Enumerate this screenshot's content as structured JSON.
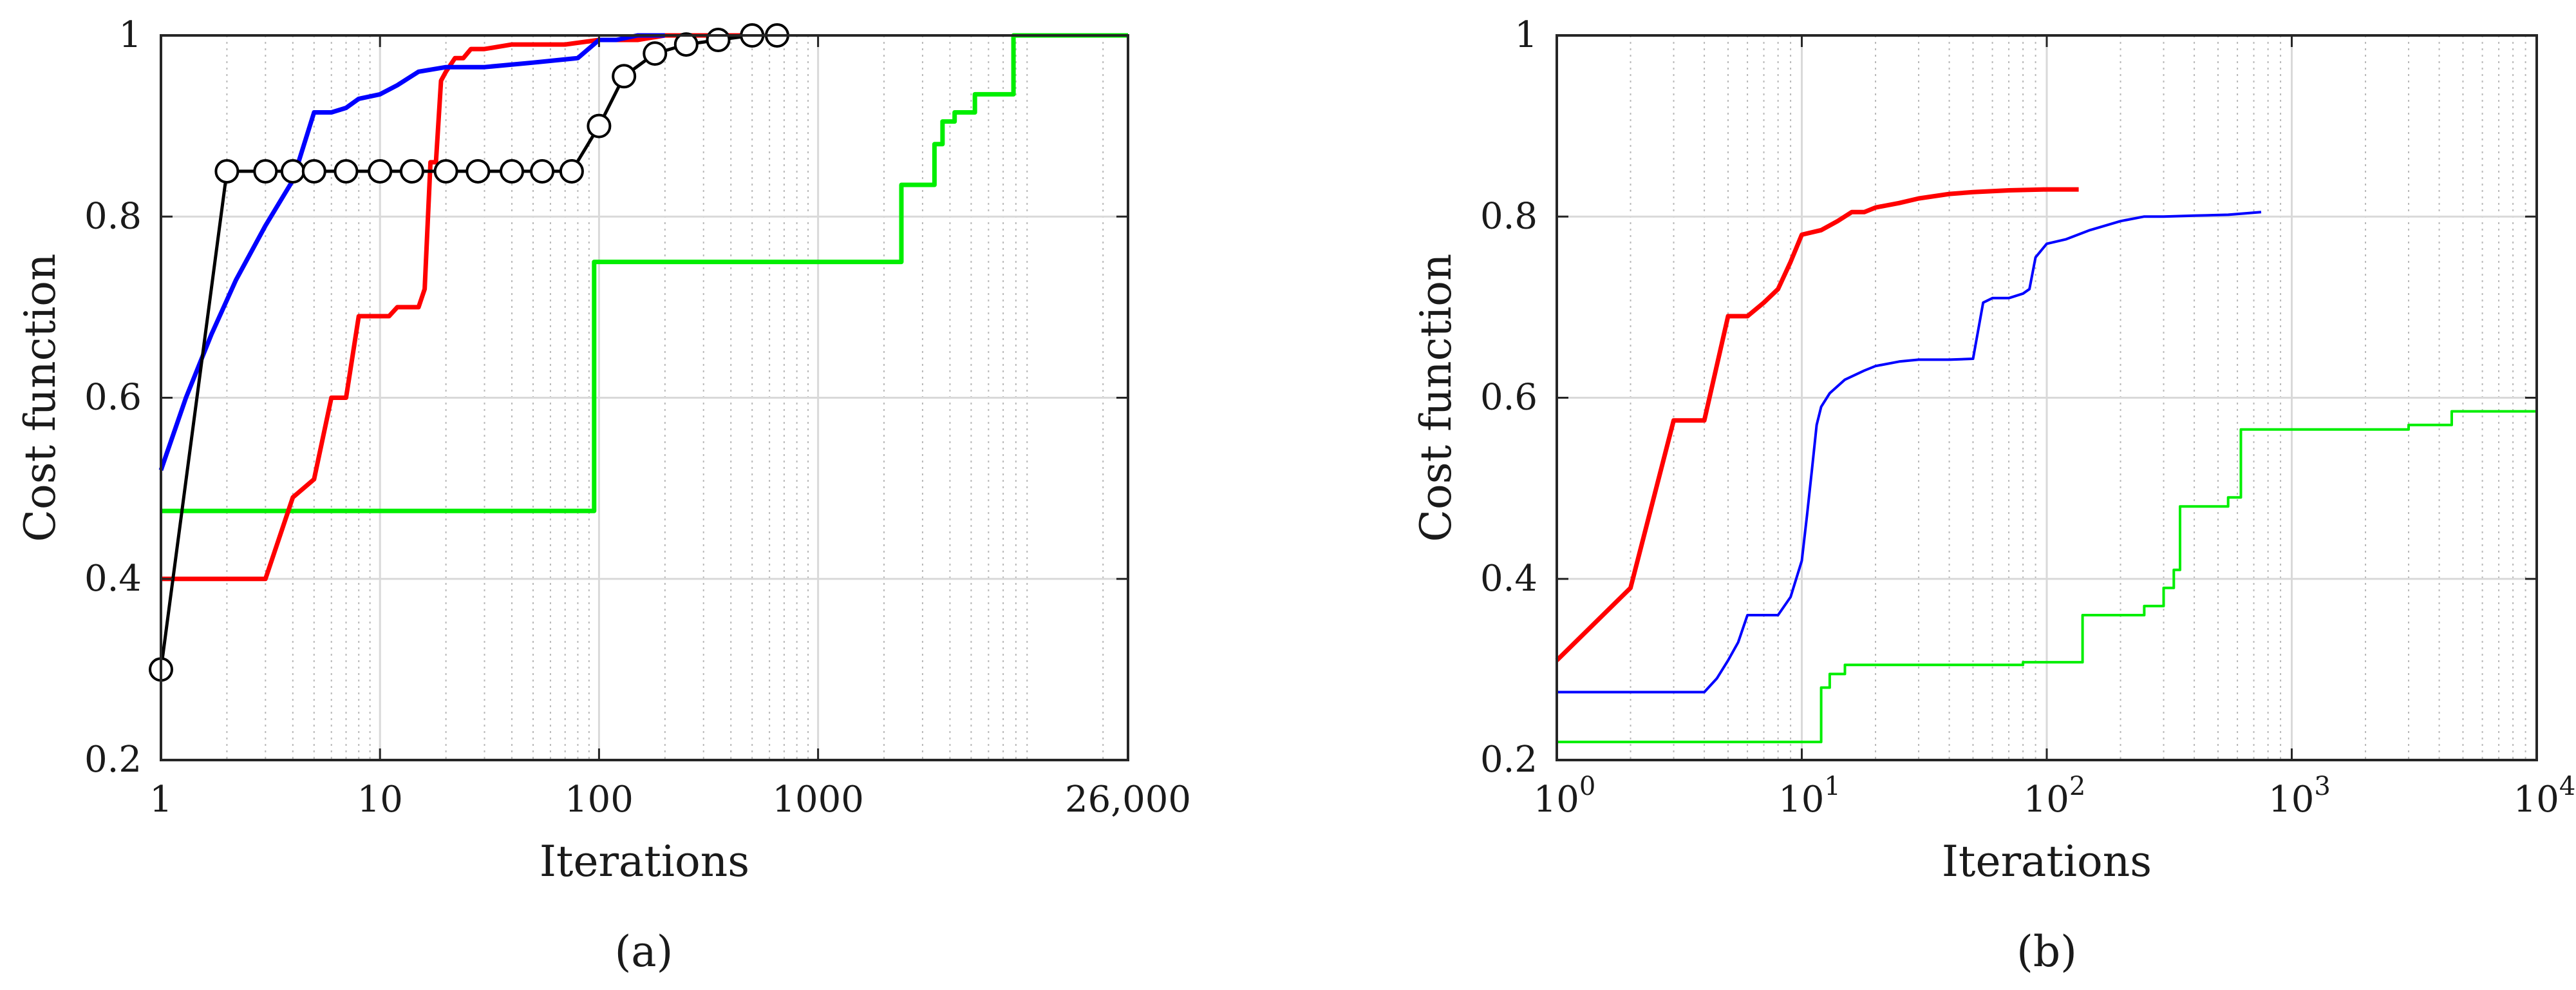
{
  "chart_data": [
    {
      "panel": "a",
      "panel_label": "(a)",
      "type": "line",
      "xlabel": "Iterations",
      "ylabel": "Cost function",
      "x_scale": "log",
      "xlim": [
        1,
        26000
      ],
      "ylim": [
        0.2,
        1
      ],
      "x_ticks": [
        {
          "value": 1,
          "label": "1"
        },
        {
          "value": 10,
          "label": "10"
        },
        {
          "value": 100,
          "label": "100"
        },
        {
          "value": 1000,
          "label": "1000"
        },
        {
          "value": 26000,
          "label": "26,000"
        }
      ],
      "y_ticks": [
        {
          "value": 0.2,
          "label": "0.2"
        },
        {
          "value": 0.4,
          "label": "0.4"
        },
        {
          "value": 0.6,
          "label": "0.6"
        },
        {
          "value": 0.8,
          "label": "0.8"
        },
        {
          "value": 1,
          "label": "1"
        }
      ],
      "grid": true,
      "series": [
        {
          "color": "#00ee00",
          "width": 7,
          "style": "step",
          "markers": false,
          "x": [
            1,
            95,
            95,
            2400,
            2400,
            3400,
            3400,
            3700,
            3700,
            4200,
            4200,
            5200,
            5200,
            7800,
            7800,
            26000
          ],
          "y": [
            0.475,
            0.475,
            0.75,
            0.75,
            0.835,
            0.835,
            0.88,
            0.88,
            0.905,
            0.905,
            0.915,
            0.915,
            0.935,
            0.935,
            1.0,
            1.0
          ]
        },
        {
          "color": "#ff0000",
          "width": 7,
          "style": "line",
          "markers": false,
          "x": [
            1,
            3,
            4,
            5,
            6,
            7,
            8,
            9,
            10,
            11,
            12,
            13,
            14,
            15,
            16,
            17,
            18,
            19,
            20,
            22,
            24,
            26,
            30,
            40,
            50,
            70,
            100,
            150,
            200,
            300,
            500
          ],
          "y": [
            0.4,
            0.4,
            0.49,
            0.51,
            0.6,
            0.6,
            0.69,
            0.69,
            0.69,
            0.69,
            0.7,
            0.7,
            0.7,
            0.7,
            0.72,
            0.86,
            0.86,
            0.95,
            0.96,
            0.975,
            0.975,
            0.985,
            0.985,
            0.99,
            0.99,
            0.99,
            0.995,
            0.995,
            1.0,
            1.0,
            1.0
          ]
        },
        {
          "color": "#0000ff",
          "width": 7,
          "style": "line",
          "markers": false,
          "x": [
            1,
            1.3,
            1.7,
            2.2,
            3,
            4,
            5,
            6,
            7,
            8,
            10,
            12,
            15,
            20,
            30,
            50,
            80,
            100,
            120,
            150,
            200
          ],
          "y": [
            0.52,
            0.6,
            0.67,
            0.73,
            0.79,
            0.84,
            0.915,
            0.915,
            0.92,
            0.93,
            0.935,
            0.945,
            0.96,
            0.965,
            0.965,
            0.97,
            0.975,
            0.995,
            0.995,
            1.0,
            1.0
          ]
        },
        {
          "color": "#000000",
          "width": 5,
          "style": "line",
          "markers": true,
          "x": [
            1,
            2,
            3,
            4,
            5,
            7,
            10,
            14,
            20,
            28,
            40,
            55,
            75,
            100,
            130,
            180,
            250,
            350,
            500,
            650
          ],
          "y": [
            0.3,
            0.85,
            0.85,
            0.85,
            0.85,
            0.85,
            0.85,
            0.85,
            0.85,
            0.85,
            0.85,
            0.85,
            0.85,
            0.9,
            0.955,
            0.98,
            0.99,
            0.995,
            1.0,
            1.0
          ]
        }
      ]
    },
    {
      "panel": "b",
      "panel_label": "(b)",
      "type": "line",
      "xlabel": "Iterations",
      "ylabel": "Cost function",
      "x_scale": "log",
      "xlim": [
        1,
        10000
      ],
      "ylim": [
        0.2,
        1
      ],
      "x_ticks": [
        {
          "value": 1,
          "label": "10",
          "exp": "0"
        },
        {
          "value": 10,
          "label": "10",
          "exp": "1"
        },
        {
          "value": 100,
          "label": "10",
          "exp": "2"
        },
        {
          "value": 1000,
          "label": "10",
          "exp": "3"
        },
        {
          "value": 10000,
          "label": "10",
          "exp": "4"
        }
      ],
      "y_ticks": [
        {
          "value": 0.2,
          "label": "0.2"
        },
        {
          "value": 0.4,
          "label": "0.4"
        },
        {
          "value": 0.6,
          "label": "0.6"
        },
        {
          "value": 0.8,
          "label": "0.8"
        },
        {
          "value": 1,
          "label": "1"
        }
      ],
      "grid": true,
      "series": [
        {
          "color": "#ff0000",
          "width": 7,
          "style": "line",
          "markers": false,
          "x": [
            1,
            2,
            3,
            4,
            5,
            6,
            7,
            8,
            9,
            10,
            12,
            14,
            16,
            18,
            20,
            25,
            30,
            40,
            50,
            70,
            100,
            135
          ],
          "y": [
            0.31,
            0.39,
            0.575,
            0.575,
            0.69,
            0.69,
            0.705,
            0.72,
            0.75,
            0.78,
            0.785,
            0.795,
            0.805,
            0.805,
            0.81,
            0.815,
            0.82,
            0.825,
            0.827,
            0.829,
            0.83,
            0.83
          ]
        },
        {
          "color": "#0000ff",
          "width": 4,
          "style": "line",
          "markers": false,
          "x": [
            1,
            4,
            4.5,
            5,
            5.5,
            6,
            7,
            8,
            9,
            10,
            10.5,
            11,
            11.5,
            12,
            13,
            15,
            18,
            20,
            25,
            30,
            40,
            50,
            55,
            60,
            70,
            80,
            85,
            90,
            100,
            120,
            150,
            200,
            250,
            300,
            400,
            550,
            750
          ],
          "y": [
            0.275,
            0.275,
            0.29,
            0.31,
            0.33,
            0.36,
            0.36,
            0.36,
            0.38,
            0.42,
            0.47,
            0.52,
            0.57,
            0.59,
            0.605,
            0.62,
            0.63,
            0.635,
            0.64,
            0.642,
            0.642,
            0.643,
            0.705,
            0.71,
            0.71,
            0.715,
            0.72,
            0.755,
            0.77,
            0.775,
            0.785,
            0.795,
            0.8,
            0.8,
            0.801,
            0.802,
            0.805
          ]
        },
        {
          "color": "#00ee00",
          "width": 4,
          "style": "step",
          "markers": false,
          "x": [
            1,
            12,
            12,
            13,
            13,
            15,
            15,
            80,
            80,
            140,
            140,
            250,
            250,
            300,
            300,
            330,
            330,
            350,
            350,
            550,
            550,
            620,
            620,
            3000,
            3000,
            4500,
            4500,
            10000
          ],
          "y": [
            0.22,
            0.22,
            0.28,
            0.28,
            0.295,
            0.295,
            0.305,
            0.305,
            0.308,
            0.308,
            0.36,
            0.36,
            0.37,
            0.37,
            0.39,
            0.39,
            0.41,
            0.41,
            0.48,
            0.48,
            0.49,
            0.49,
            0.565,
            0.565,
            0.57,
            0.57,
            0.585,
            0.585
          ]
        }
      ]
    }
  ]
}
